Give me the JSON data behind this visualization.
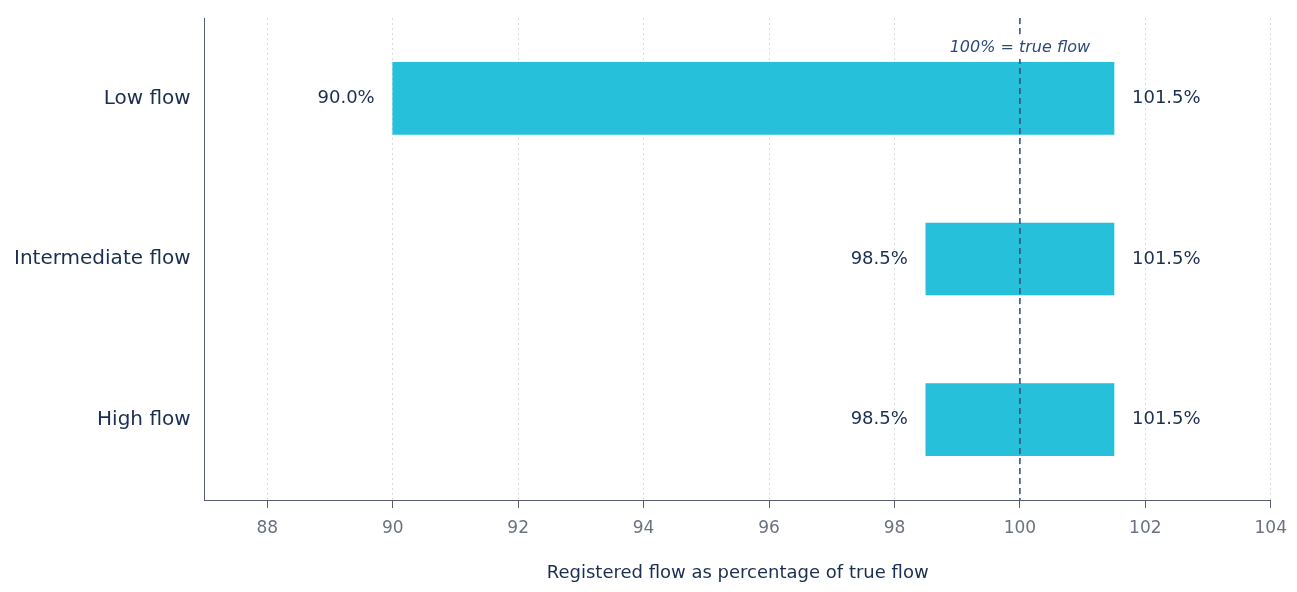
{
  "chart_data": {
    "type": "bar",
    "orientation": "horizontal",
    "xlabel": "Registered flow as percentage of true flow",
    "categories": [
      "Low flow",
      "Intermediate flow",
      "High flow"
    ],
    "base": [
      90,
      98.5,
      98.5
    ],
    "values": [
      11.5,
      3,
      3
    ],
    "color": "#26c0da",
    "xlim": [
      87,
      104
    ],
    "xticks": [
      88,
      90,
      92,
      94,
      96,
      98,
      100,
      102,
      104
    ],
    "grid": "x",
    "legend": false,
    "ref_lines": [
      {
        "axis": "x",
        "value": 100,
        "label": "100% = true flow",
        "color": "#2f4a7a",
        "line_style": "dashed"
      }
    ],
    "annotations": [
      {
        "text": "90.0%",
        "x": 90,
        "y": "Low flow"
      },
      {
        "text": "101.5%",
        "x": 101.5,
        "y": "Low flow"
      },
      {
        "text": "98.5%",
        "x": 98.5,
        "y": "Intermediate flow"
      },
      {
        "text": "101.5%",
        "x": 101.5,
        "y": "Intermediate flow"
      },
      {
        "text": "98.5%",
        "x": 98.5,
        "y": "High flow"
      },
      {
        "text": "101.5%",
        "x": 101.5,
        "y": "High flow"
      }
    ]
  }
}
